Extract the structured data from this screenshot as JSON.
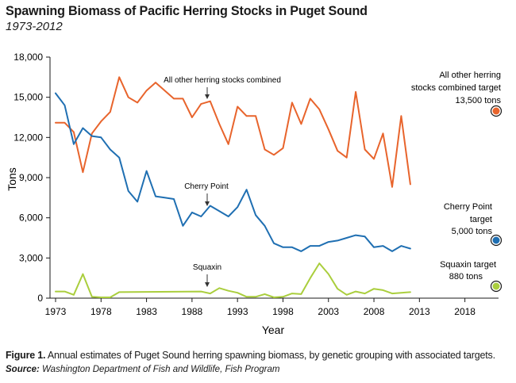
{
  "header": {
    "title": "Spawning Biomass of Pacific Herring Stocks in Puget Sound",
    "subtitle": "1973-2012"
  },
  "footer": {
    "figure_label": "Figure 1.",
    "caption": "Annual estimates of Puget Sound herring spawning biomass, by genetic grouping with associated targets.",
    "source_label": "Source:",
    "source": "Washington Department of Fish and Wildlife, Fish Program"
  },
  "chart_data": {
    "type": "line",
    "title": "Spawning Biomass of Pacific Herring Stocks in Puget Sound",
    "subtitle": "1973-2012",
    "xlabel": "Year",
    "ylabel": "Tons",
    "xlim": [
      1973,
      2021
    ],
    "ylim": [
      0,
      18000
    ],
    "x_ticks": [
      "1973",
      "1978",
      "1983",
      "1988",
      "1993",
      "1998",
      "2003",
      "2008",
      "2013",
      "2018"
    ],
    "y_ticks": [
      "0",
      "3,000",
      "6,000",
      "9,000",
      "12,000",
      "15,000",
      "18,000"
    ],
    "grid": false,
    "series": [
      {
        "name": "All other herring stocks combined",
        "color": "#E8642C",
        "x": [
          1973,
          1974,
          1975,
          1976,
          1977,
          1978,
          1979,
          1980,
          1981,
          1982,
          1983,
          1984,
          1985,
          1986,
          1987,
          1988,
          1989,
          1990,
          1991,
          1992,
          1993,
          1994,
          1995,
          1996,
          1997,
          1998,
          1999,
          2000,
          2001,
          2002,
          2003,
          2004,
          2005,
          2006,
          2007,
          2008,
          2009,
          2010,
          2011,
          2012
        ],
        "values": [
          13100,
          13100,
          12400,
          9400,
          12300,
          13200,
          13900,
          16500,
          15000,
          14600,
          15500,
          16100,
          15500,
          14900,
          14900,
          13500,
          14500,
          14700,
          13000,
          11500,
          14300,
          13600,
          13600,
          11100,
          10700,
          11200,
          14600,
          13000,
          14900,
          14100,
          12600,
          11000,
          10500,
          15400,
          11100,
          10400,
          12300,
          8300,
          13600,
          8500
        ],
        "label": "All other herring stocks combined",
        "target_label": "All other herring stocks combined target",
        "target": "13,500 tons",
        "target_value": 13500
      },
      {
        "name": "Cherry Point",
        "color": "#1F6FB2",
        "x": [
          1973,
          1974,
          1975,
          1976,
          1977,
          1978,
          1979,
          1980,
          1981,
          1982,
          1983,
          1984,
          1985,
          1986,
          1987,
          1988,
          1989,
          1990,
          1991,
          1992,
          1993,
          1994,
          1995,
          1996,
          1997,
          1998,
          1999,
          2000,
          2001,
          2002,
          2003,
          2004,
          2005,
          2006,
          2007,
          2008,
          2009,
          2010,
          2011,
          2012
        ],
        "values": [
          15300,
          14400,
          11500,
          12700,
          12100,
          12000,
          11100,
          10500,
          8000,
          7200,
          9500,
          7600,
          7500,
          7400,
          5400,
          6400,
          6100,
          6900,
          6500,
          6100,
          6800,
          8100,
          6200,
          5400,
          4100,
          3800,
          3800,
          3500,
          3900,
          3900,
          4200,
          4300,
          4500,
          4700,
          4600,
          3800,
          3900,
          3500,
          3900,
          3700
        ],
        "label": "Cherry Point",
        "target_label": "Cherry Point target",
        "target": "5,000 tons",
        "target_value": 5000
      },
      {
        "name": "Squaxin",
        "color": "#AACE3D",
        "x": [
          1973,
          1974,
          1975,
          1976,
          1977,
          1978,
          1979,
          1980,
          1989,
          1990,
          1991,
          1992,
          1993,
          1994,
          1995,
          1996,
          1997,
          1998,
          1999,
          2000,
          2001,
          2002,
          2003,
          2004,
          2005,
          2006,
          2007,
          2008,
          2009,
          2010,
          2011,
          2012
        ],
        "values": [
          500,
          500,
          250,
          1800,
          100,
          60,
          60,
          450,
          500,
          350,
          750,
          550,
          400,
          100,
          100,
          300,
          60,
          100,
          350,
          300,
          1500,
          2600,
          1800,
          700,
          250,
          500,
          350,
          700,
          600,
          350,
          400,
          450
        ],
        "label": "Squaxin",
        "target_label": "Squaxin target",
        "target": "880 tons",
        "target_value": 880
      }
    ]
  }
}
